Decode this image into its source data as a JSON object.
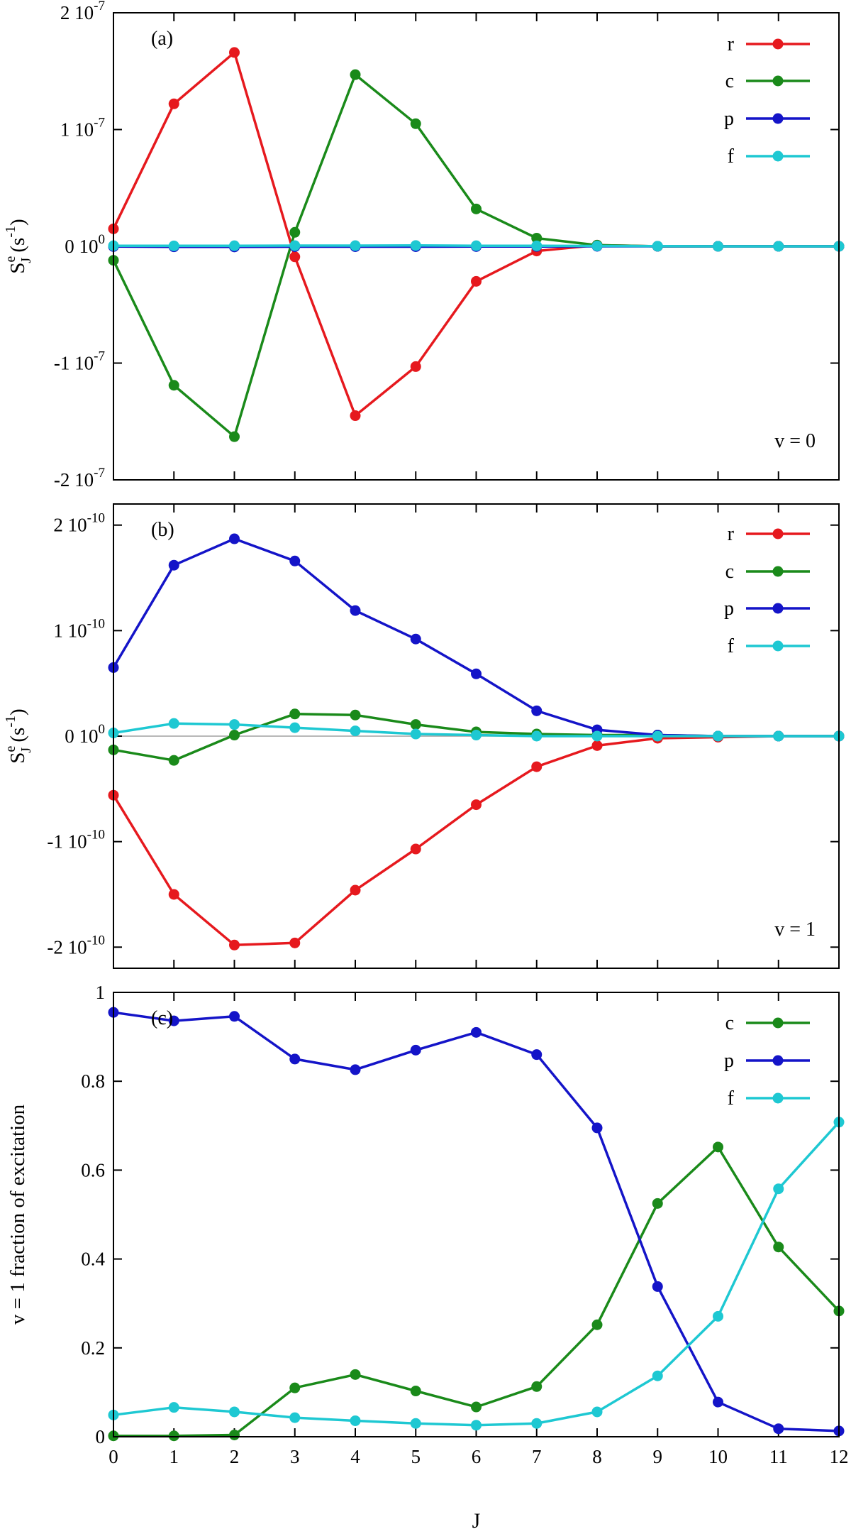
{
  "chart_data": [
    {
      "type": "line",
      "panel_label": "(a)",
      "annotation": "v = 0",
      "ylabel": {
        "main": "S",
        "sup": "e",
        "sub": "J",
        "unit": " (s",
        "unit_sup": "-1",
        "unit_close": ")"
      },
      "ylim": [
        -2e-07,
        2e-07
      ],
      "xlim": [
        0,
        12
      ],
      "zero_line": false,
      "ytick_labels": [
        {
          "value": 2e-07,
          "mantissa": "2 10",
          "exponent": "-7"
        },
        {
          "value": 1e-07,
          "mantissa": "1 10",
          "exponent": "-7"
        },
        {
          "value": 0,
          "mantissa": "0 10",
          "exponent": "0"
        },
        {
          "value": -1e-07,
          "mantissa": "-1 10",
          "exponent": "-7"
        },
        {
          "value": -2e-07,
          "mantissa": "-2 10",
          "exponent": "-7"
        }
      ],
      "x": [
        0,
        1,
        2,
        3,
        4,
        5,
        6,
        7,
        8,
        9,
        10,
        11,
        12
      ],
      "series": [
        {
          "name": "r",
          "color": "#e6191e",
          "values": [
            1.5e-08,
            1.22e-07,
            1.66e-07,
            -9e-09,
            -1.45e-07,
            -1.03e-07,
            -3e-08,
            -4e-09,
            1e-09,
            0,
            0,
            0,
            0
          ]
        },
        {
          "name": "c",
          "color": "#1a8a1a",
          "values": [
            -1.2e-08,
            -1.19e-07,
            -1.63e-07,
            1.2e-08,
            1.47e-07,
            1.05e-07,
            3.2e-08,
            7e-09,
            1e-09,
            0,
            0,
            0,
            0
          ]
        },
        {
          "name": "p",
          "color": "#1414c8",
          "values": [
            -2e-10,
            -4e-10,
            -5e-10,
            -3e-10,
            -3e-10,
            -3e-10,
            -2e-10,
            -1e-10,
            0,
            0,
            0,
            0,
            0
          ]
        },
        {
          "name": "f",
          "color": "#1ec8d2",
          "values": [
            5e-10,
            4e-10,
            5e-10,
            6e-10,
            6e-10,
            7e-10,
            5e-10,
            4e-10,
            3e-10,
            1e-10,
            0,
            0,
            0
          ]
        }
      ],
      "legend": [
        "r",
        "c",
        "p",
        "f"
      ],
      "legend_position": "top-right"
    },
    {
      "type": "line",
      "panel_label": "(b)",
      "annotation": "v = 1",
      "ylabel": {
        "main": "S",
        "sup": "e",
        "sub": "J",
        "unit": " (s",
        "unit_sup": "-1",
        "unit_close": ")"
      },
      "ylim": [
        -2.2e-10,
        2.2e-10
      ],
      "xlim": [
        0,
        12
      ],
      "zero_line": true,
      "ytick_labels": [
        {
          "value": 2e-10,
          "mantissa": "2 10",
          "exponent": "-10"
        },
        {
          "value": 1e-10,
          "mantissa": "1 10",
          "exponent": "-10"
        },
        {
          "value": 0,
          "mantissa": "0 10",
          "exponent": "0"
        },
        {
          "value": -1e-10,
          "mantissa": "-1 10",
          "exponent": "-10"
        },
        {
          "value": -2e-10,
          "mantissa": "-2 10",
          "exponent": "-10"
        }
      ],
      "x": [
        0,
        1,
        2,
        3,
        4,
        5,
        6,
        7,
        8,
        9,
        10,
        11,
        12
      ],
      "series": [
        {
          "name": "r",
          "color": "#e6191e",
          "values": [
            -5.6e-11,
            -1.5e-10,
            -1.98e-10,
            -1.96e-10,
            -1.46e-10,
            -1.07e-10,
            -6.5e-11,
            -2.9e-11,
            -9e-12,
            -2e-12,
            -1e-12,
            0,
            0
          ]
        },
        {
          "name": "c",
          "color": "#1a8a1a",
          "values": [
            -1.3e-11,
            -2.3e-11,
            1e-12,
            2.1e-11,
            2e-11,
            1.1e-11,
            4e-12,
            2e-12,
            1e-12,
            1e-12,
            0,
            0,
            0
          ]
        },
        {
          "name": "p",
          "color": "#1414c8",
          "values": [
            6.5e-11,
            1.62e-10,
            1.87e-10,
            1.66e-10,
            1.19e-10,
            9.2e-11,
            5.9e-11,
            2.4e-11,
            6e-12,
            1e-12,
            0,
            0,
            0
          ]
        },
        {
          "name": "f",
          "color": "#1ec8d2",
          "values": [
            3e-12,
            1.2e-11,
            1.1e-11,
            8e-12,
            5e-12,
            2e-12,
            1e-12,
            0,
            0,
            0,
            0,
            0,
            0
          ]
        }
      ],
      "legend": [
        "r",
        "c",
        "p",
        "f"
      ],
      "legend_position": "top-right"
    },
    {
      "type": "line",
      "panel_label": "(c)",
      "ylabel": "v = 1 fraction of excitation",
      "xlabel": "J",
      "ylim": [
        0,
        1
      ],
      "xlim": [
        0,
        12
      ],
      "zero_line": false,
      "ytick_labels": [
        {
          "value": 1,
          "label": "1"
        },
        {
          "value": 0.8,
          "label": "0.8"
        },
        {
          "value": 0.6,
          "label": "0.6"
        },
        {
          "value": 0.4,
          "label": "0.4"
        },
        {
          "value": 0.2,
          "label": "0.2"
        },
        {
          "value": 0,
          "label": "0"
        }
      ],
      "xtick_labels": [
        "0",
        "1",
        "2",
        "3",
        "4",
        "5",
        "6",
        "7",
        "8",
        "9",
        "10",
        "11",
        "12"
      ],
      "x": [
        0,
        1,
        2,
        3,
        4,
        5,
        6,
        7,
        8,
        9,
        10,
        11,
        12
      ],
      "series": [
        {
          "name": "c",
          "color": "#1a8a1a",
          "values": [
            0.002,
            0.002,
            0.004,
            0.11,
            0.14,
            0.103,
            0.067,
            0.113,
            0.252,
            0.525,
            0.652,
            0.427,
            0.283
          ]
        },
        {
          "name": "p",
          "color": "#1414c8",
          "values": [
            0.955,
            0.936,
            0.946,
            0.85,
            0.826,
            0.87,
            0.91,
            0.86,
            0.695,
            0.338,
            0.078,
            0.018,
            0.013
          ]
        },
        {
          "name": "f",
          "color": "#1ec8d2",
          "values": [
            0.049,
            0.066,
            0.056,
            0.043,
            0.036,
            0.03,
            0.026,
            0.03,
            0.056,
            0.137,
            0.271,
            0.558,
            0.708
          ]
        }
      ],
      "legend": [
        "c",
        "p",
        "f"
      ],
      "legend_position": "top-right"
    }
  ]
}
